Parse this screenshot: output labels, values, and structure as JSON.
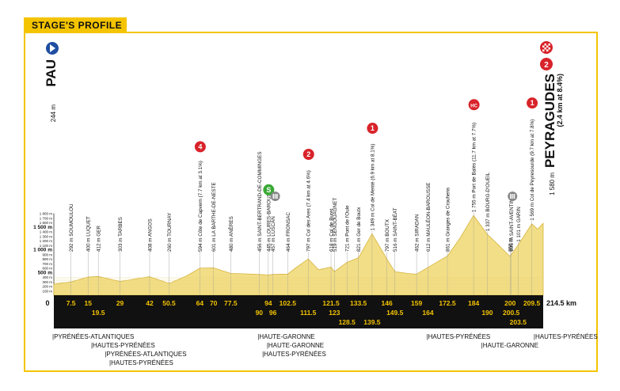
{
  "header": {
    "title": "STAGE'S PROFILE"
  },
  "start": {
    "name": "PAU",
    "altitude": "244 m"
  },
  "finish": {
    "name": "PEYRAGUDES",
    "detail": "(2.4 km at 8.4%)",
    "altitude": "1 580 m",
    "category": "2"
  },
  "altitude_ticks": [
    "1 800 m",
    "1 700 m",
    "1 600 m",
    "1 500 m",
    "1 400 m",
    "1 300 m",
    "1 200 m",
    "1 100 m",
    "1 000 m",
    "900 m",
    "800 m",
    "700 m",
    "600 m",
    "500 m",
    "400 m",
    "300 m",
    "200 m",
    "100 m"
  ],
  "total_distance": "214.5 km",
  "start_km": "0",
  "waypoints": [
    {
      "km": 7.5,
      "km_label": "7.5",
      "label": "292 m SOUMOULOU",
      "row": 0
    },
    {
      "km": 15,
      "km_label": "15",
      "label": "400 m LUQUET",
      "row": 0
    },
    {
      "km": 19.5,
      "km_label": "19.5",
      "label": "412 m GER",
      "row": 1
    },
    {
      "km": 29,
      "km_label": "29",
      "label": "303 m TARBES",
      "row": 0
    },
    {
      "km": 42,
      "km_label": "42",
      "label": "408 m ANGOS",
      "row": 0
    },
    {
      "km": 50.5,
      "km_label": "50.5",
      "label": "260 m TOURNAY",
      "row": 0
    },
    {
      "km": 64,
      "km_label": "64",
      "label": "594 m Côte de Capvern (7.7 km at 3.1%)",
      "row": 0,
      "climb": "4"
    },
    {
      "km": 70,
      "km_label": "70",
      "label": "601 m LA BARTHE-DE-NESTE",
      "row": 0
    },
    {
      "km": 77.5,
      "km_label": "77.5",
      "label": "480 m ANÈRES",
      "row": 0
    },
    {
      "km": 90,
      "km_label": "90",
      "label": "456 m SAINT-BERTRAND-DE-COMMINGES",
      "row": 1
    },
    {
      "km": 94,
      "km_label": "94",
      "label": "445 m LOURES-BAROUSSE",
      "row": 0,
      "sprint": "S"
    },
    {
      "km": 96,
      "km_label": "96",
      "label": "457 m LUSCAN",
      "row": 1
    },
    {
      "km": 102.5,
      "km_label": "102.5",
      "label": "464 m FRONSAC",
      "row": 0
    },
    {
      "km": 111.5,
      "km_label": "111.5",
      "label": "797 m Col des Ares (7.4 km at 4.6%)",
      "row": 1,
      "climb": "2"
    },
    {
      "km": 121.5,
      "km_label": "121.5",
      "label": "618 m Col de Buret",
      "row": 0
    },
    {
      "km": 123,
      "km_label": "123",
      "label": "519 m SENGOUAGNET",
      "row": 1
    },
    {
      "km": 128.5,
      "km_label": "128.5",
      "label": "721 m Pont de l'Oule",
      "row": 2
    },
    {
      "km": 133.5,
      "km_label": "133.5",
      "label": "821 m Ger de Boutx",
      "row": 0
    },
    {
      "km": 139.5,
      "km_label": "139.5",
      "label": "1 349 m Col de Menté (6.9 km at 8.1%)",
      "row": 2,
      "climb": "1"
    },
    {
      "km": 146,
      "km_label": "146",
      "label": "797 m BOUTX",
      "row": 0
    },
    {
      "km": 149.5,
      "km_label": "149.5",
      "label": "516 m SAINT-BÉAT",
      "row": 1
    },
    {
      "km": 159,
      "km_label": "159",
      "label": "462 m SIRADAN",
      "row": 0
    },
    {
      "km": 164,
      "km_label": "164",
      "label": "612 m MAULÉON-BAROUSSE",
      "row": 1
    },
    {
      "km": 172.5,
      "km_label": "172.5",
      "label": "861 m Granges de Crouhens",
      "row": 0
    },
    {
      "km": 184,
      "km_label": "184",
      "label": "1 755 m Port de Balès (11.7 km at 7.7%)",
      "row": 0,
      "climb": "HC"
    },
    {
      "km": 190,
      "km_label": "190",
      "label": "1 337 m BOURG-D'OUEIL",
      "row": 1
    },
    {
      "km": 200,
      "km_label": "200",
      "label": "850 m",
      "row": 0
    },
    {
      "km": 200.5,
      "km_label": "200.5",
      "label": "895 m SAINT-AVENTIN",
      "row": 1
    },
    {
      "km": 203.5,
      "km_label": "203.5",
      "label": "1 101 m GARIN",
      "row": 2
    },
    {
      "km": 209.5,
      "km_label": "209.5",
      "label": "1 569 m Col de Peyresourde (9.7 km at 7.8%)",
      "row": 0,
      "climb": "1"
    }
  ],
  "feed_zones": [
    {
      "km": 96
    },
    {
      "km": 200
    }
  ],
  "elevation_profile": {
    "km": [
      0,
      7.5,
      15,
      19.5,
      29,
      42,
      50.5,
      58,
      64,
      70,
      77.5,
      84,
      90,
      94,
      96,
      102.5,
      106,
      111.5,
      116,
      121.5,
      123,
      128.5,
      133.5,
      139.5,
      146,
      149.5,
      155,
      159,
      164,
      172.5,
      178,
      184,
      190,
      195,
      200,
      200.5,
      203.5,
      209.5,
      212,
      214.5
    ],
    "alt": [
      244,
      292,
      400,
      412,
      303,
      408,
      260,
      420,
      594,
      601,
      480,
      470,
      456,
      445,
      457,
      464,
      600,
      797,
      560,
      618,
      519,
      721,
      821,
      1349,
      797,
      516,
      480,
      462,
      612,
      861,
      1250,
      1755,
      1337,
      1100,
      850,
      895,
      1101,
      1569,
      1450,
      1580
    ]
  },
  "departments": [
    {
      "label": "|PYRÉNÉES-ATLANTIQUES",
      "row": 0,
      "x_km": 0
    },
    {
      "label": "|HAUTES-PYRÉNÉES",
      "row": 1,
      "x_km": 17
    },
    {
      "label": "|PYRÉNÉES-ATLANTIQUES",
      "row": 2,
      "x_km": 23
    },
    {
      "label": "|HAUTES-PYRÉNÉES",
      "row": 3,
      "x_km": 25
    },
    {
      "label": "|HAUTE-GARONNE",
      "row": 0,
      "x_km": 90
    },
    {
      "label": "|HAUTE-GARONNE",
      "row": 1,
      "x_km": 94
    },
    {
      "label": "|HAUTES-PYRÉNÉES",
      "row": 2,
      "x_km": 92
    },
    {
      "label": "|HAUTES-PYRÉNÉES",
      "row": 0,
      "x_km": 164
    },
    {
      "label": "|HAUTE-GARONNE",
      "row": 1,
      "x_km": 188
    },
    {
      "label": "|HAUTES-PYRÉNÉES",
      "row": 0,
      "x_km": 211
    }
  ],
  "colors": {
    "accent": "#f5c400",
    "climb": "#d8232a",
    "sprint": "#3aa935",
    "start": "#1f4ea1",
    "profile": "#f2de86",
    "profile_stroke": "#d6b440"
  }
}
